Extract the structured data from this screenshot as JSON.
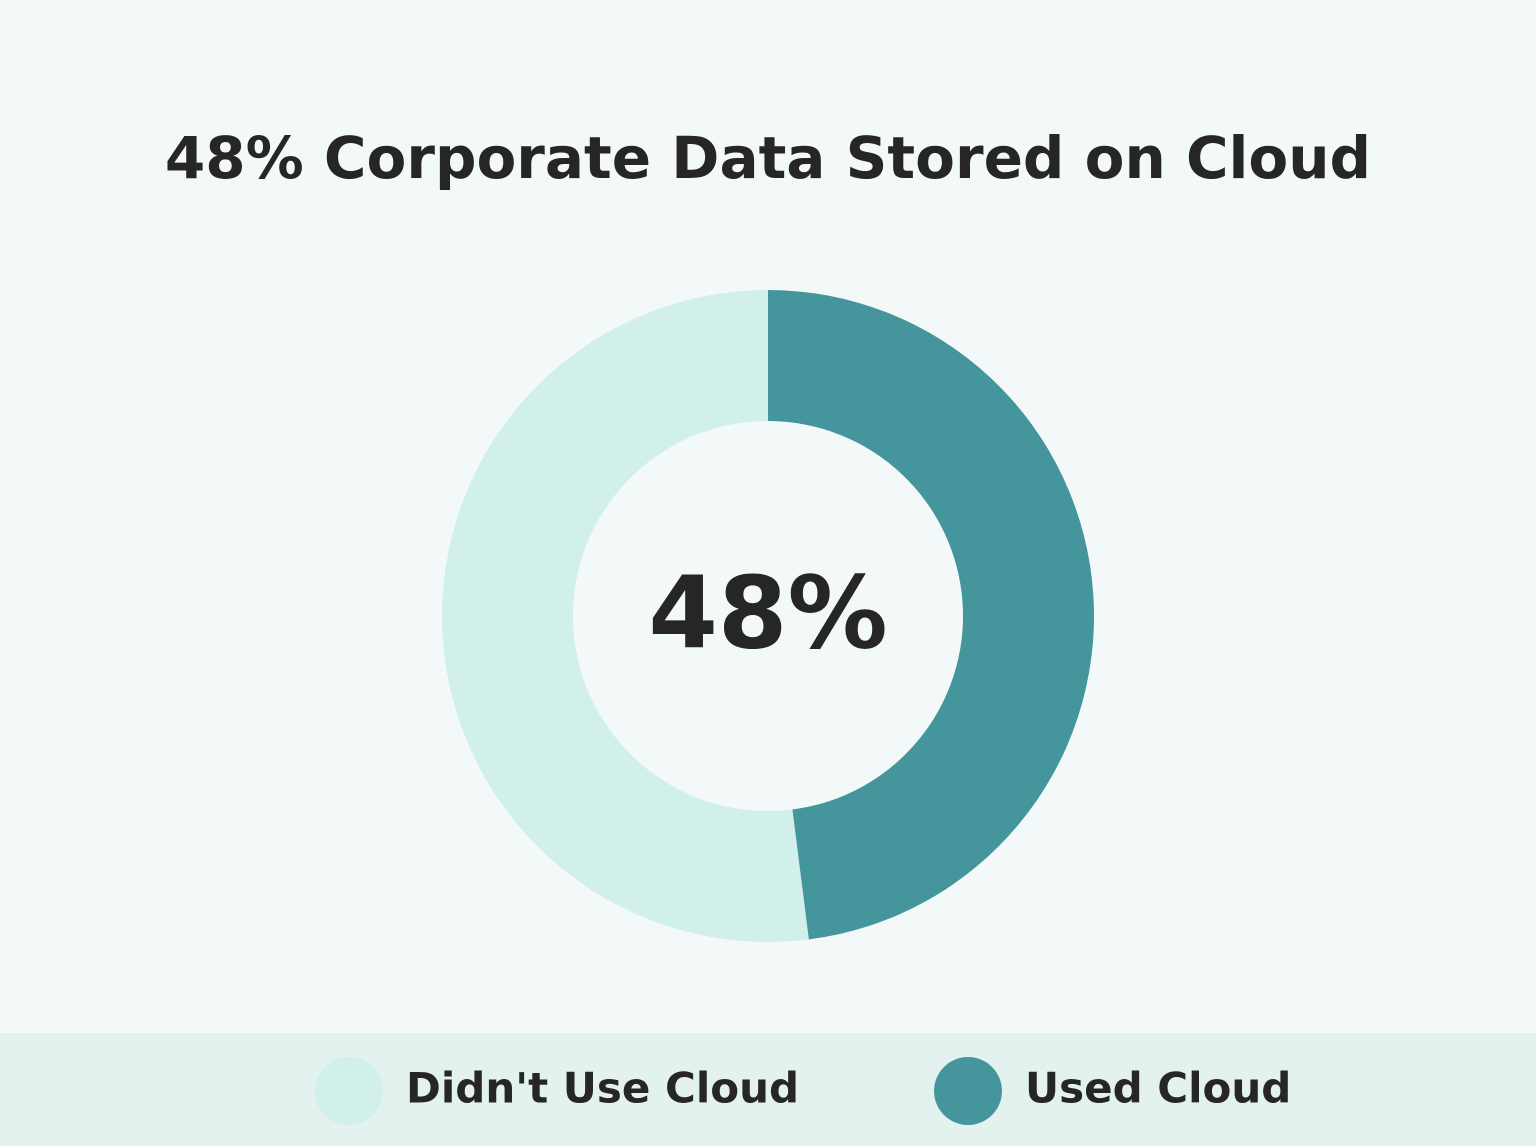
{
  "chart_data": {
    "type": "donut",
    "title": "48% Corporate Data Stored on Cloud",
    "center_label": "48%",
    "categories": [
      "Didn't Use Cloud",
      "Used Cloud"
    ],
    "values": [
      52,
      48
    ],
    "colors": [
      "#d2f0eb",
      "#45959c"
    ],
    "direction": "counterclockwise"
  }
}
